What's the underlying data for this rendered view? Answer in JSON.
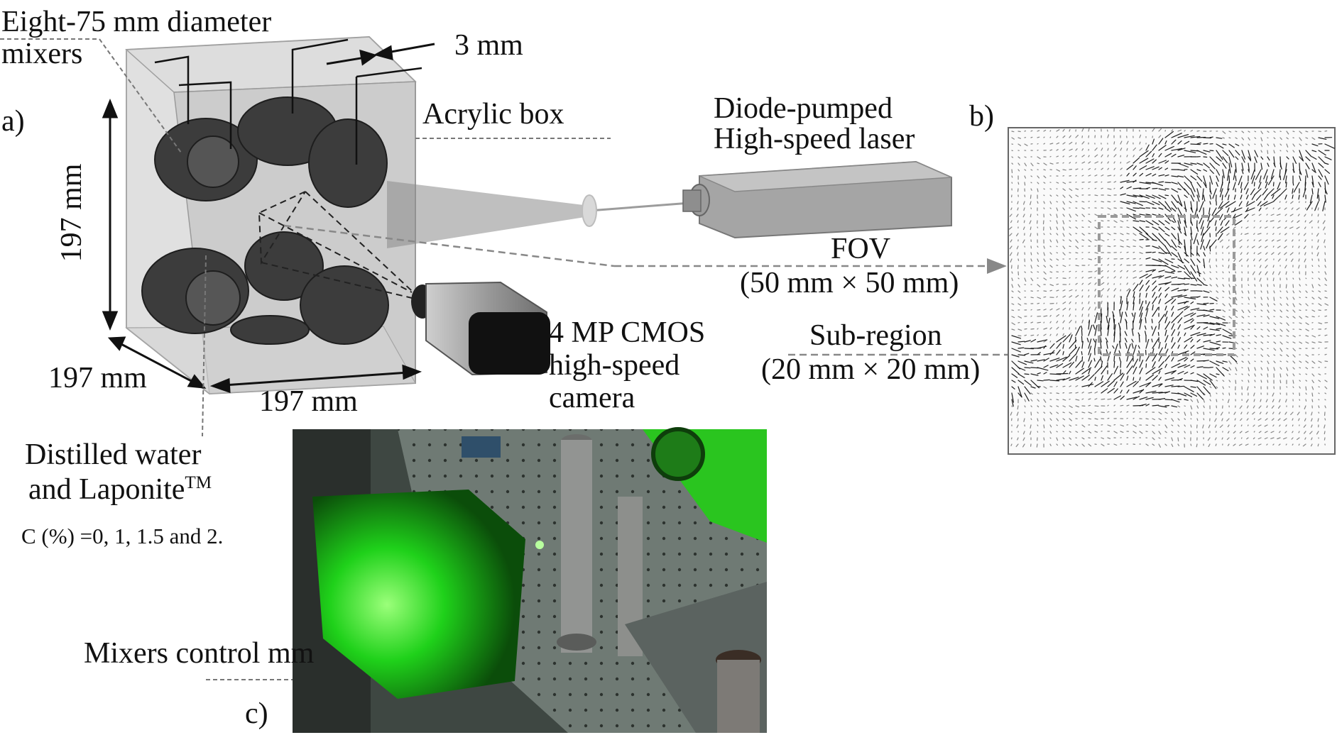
{
  "labels": {
    "mixers_l1": "Eight-75 mm diameter",
    "mixers_l2": "mixers",
    "thickness": "3 mm",
    "panel_a": "a)",
    "panel_b": "b)",
    "panel_c": "c)",
    "acrylic": "Acrylic box",
    "laser_l1": "Diode-pumped",
    "laser_l2": "High-speed laser",
    "dim_height": "197 mm",
    "dim_depth": "197 mm",
    "dim_width": "197 mm",
    "fov_l1": "FOV",
    "fov_l2": "(50 mm × 50 mm)",
    "sub_l1": "Sub-region",
    "sub_l2": "(20 mm × 20 mm)",
    "cam_l1": "4 MP CMOS",
    "cam_l2": "high-speed",
    "cam_l3": "camera",
    "fluid_l1": "Distilled water",
    "fluid_l2": "and Laponite",
    "fluid_tm": "TM",
    "conc": "C (%) =0, 1, 1.5 and 2.",
    "control": "Mixers control mm"
  },
  "colors": {
    "box_fill": "#b9b9b9",
    "mixer": "#3a3a3a",
    "laser_body": "#a6a6a6",
    "photo_green": "#1fd11a",
    "vector_ink": "#111111"
  }
}
